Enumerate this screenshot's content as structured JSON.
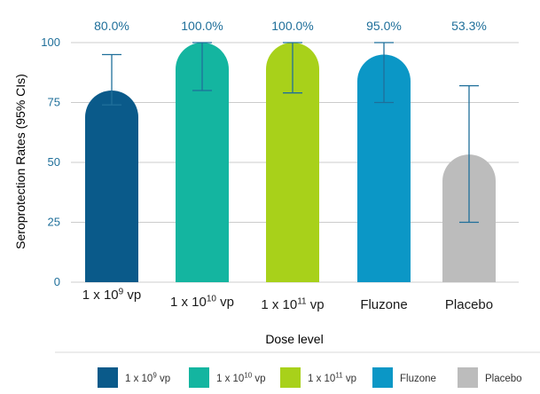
{
  "chart_data": {
    "type": "bar",
    "ylabel": "Seroprotection Rates (95% CIs)",
    "xlabel": "Dose level",
    "ylim": [
      0,
      100
    ],
    "yticks": [
      0,
      25,
      50,
      75,
      100
    ],
    "grid": true,
    "legend_position": "bottom",
    "categories": [
      {
        "label": "1 x 10",
        "exp": "9",
        "unit": " vp"
      },
      {
        "label": "1 x 10",
        "exp": "10",
        "unit": " vp"
      },
      {
        "label": "1 x 10",
        "exp": "11",
        "unit": " vp"
      },
      {
        "label": "Fluzone",
        "exp": "",
        "unit": ""
      },
      {
        "label": "Placebo",
        "exp": "",
        "unit": ""
      }
    ],
    "values": [
      80.0,
      100.0,
      100.0,
      95.0,
      53.3
    ],
    "value_labels": [
      "80.0%",
      "100.0%",
      "100.0%",
      "95.0%",
      "53.3%"
    ],
    "ci_lower": [
      74,
      80,
      79,
      75,
      25
    ],
    "ci_upper": [
      95,
      100,
      100,
      100,
      82
    ],
    "colors": [
      "#0a5a8a",
      "#14b5a0",
      "#a8d11a",
      "#0b97c6",
      "#bcbcbc"
    ],
    "axis_color": "#1f6f9a",
    "grid_color": "#cccccc",
    "errorbar_color": "#1f6f9a"
  }
}
